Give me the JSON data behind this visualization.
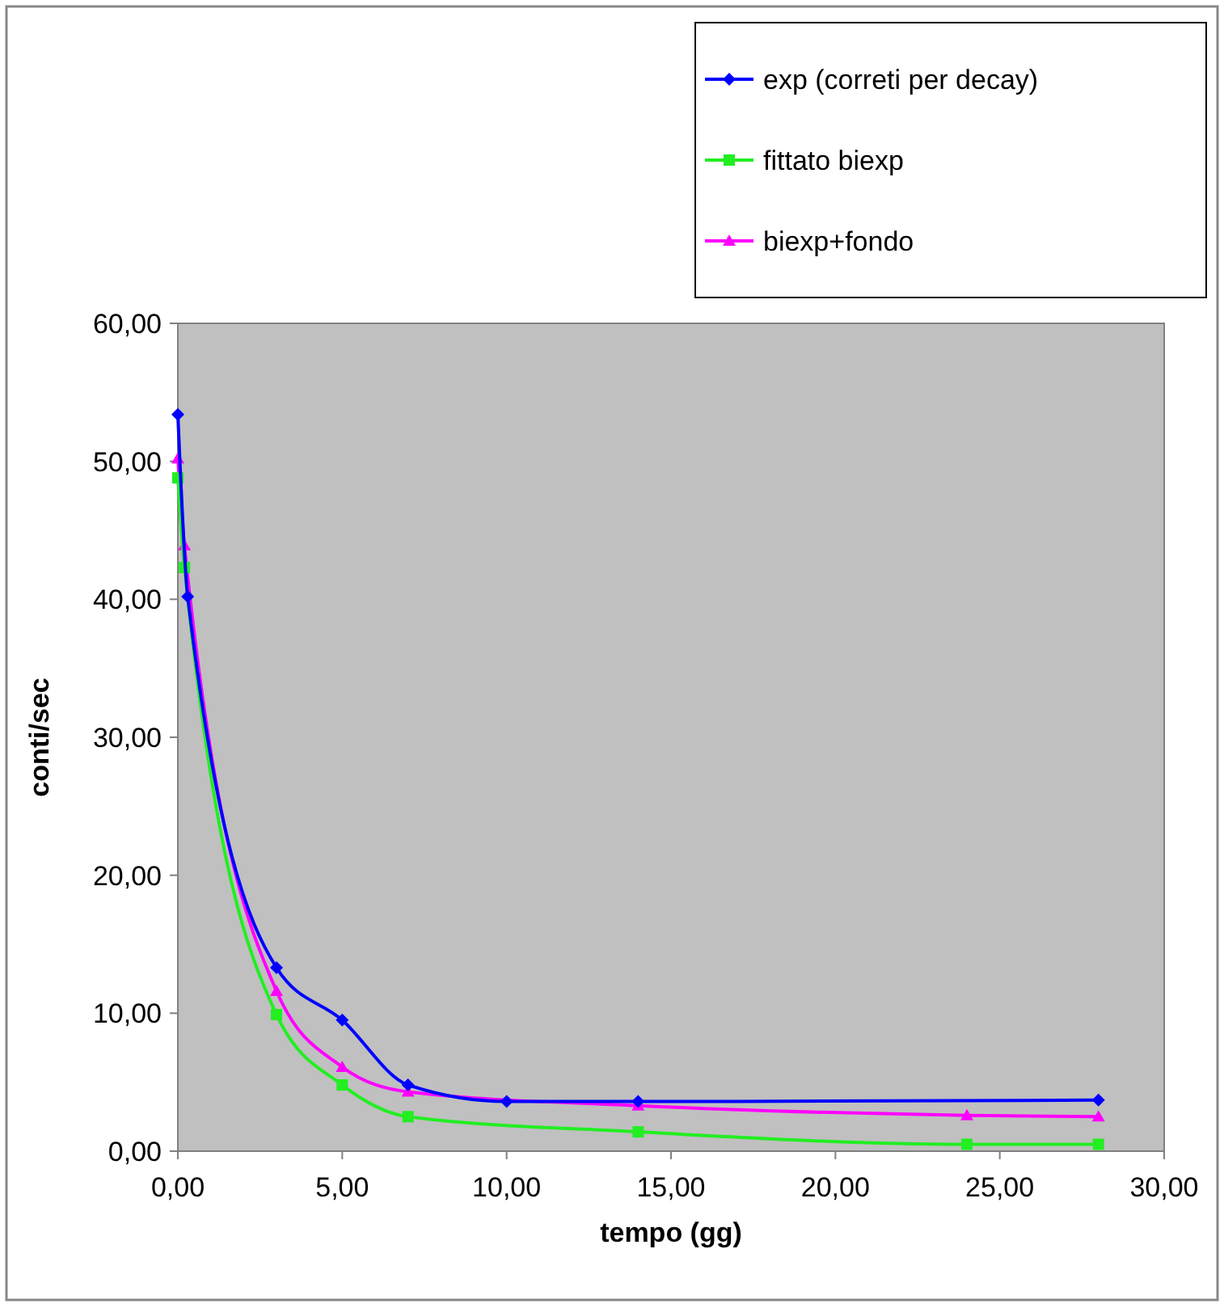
{
  "chart_data": {
    "type": "line",
    "xlabel": "tempo (gg)",
    "ylabel": "conti/sec",
    "xlim": [
      0,
      30
    ],
    "ylim": [
      0,
      60
    ],
    "xticks": [
      {
        "value": 0,
        "label": "0,00"
      },
      {
        "value": 5,
        "label": "5,00"
      },
      {
        "value": 10,
        "label": "10,00"
      },
      {
        "value": 15,
        "label": "15,00"
      },
      {
        "value": 20,
        "label": "20,00"
      },
      {
        "value": 25,
        "label": "25,00"
      },
      {
        "value": 30,
        "label": "30,00"
      }
    ],
    "yticks": [
      {
        "value": 0,
        "label": "0,00"
      },
      {
        "value": 10,
        "label": "10,00"
      },
      {
        "value": 20,
        "label": "20,00"
      },
      {
        "value": 30,
        "label": "30,00"
      },
      {
        "value": 40,
        "label": "40,00"
      },
      {
        "value": 50,
        "label": "50,00"
      },
      {
        "value": 60,
        "label": "60,00"
      }
    ],
    "grid": false,
    "legend": "top right",
    "series": [
      {
        "name": "exp (correti per decay)",
        "color": "#0000ff",
        "marker": "diamond",
        "x": [
          0,
          0.3,
          3,
          5,
          7,
          10,
          14,
          28
        ],
        "values": [
          53.4,
          40.2,
          13.3,
          9.5,
          4.8,
          3.6,
          3.6,
          3.7
        ]
      },
      {
        "name": "fittato biexp",
        "color": "#22ee22",
        "marker": "square",
        "x": [
          0,
          0.2,
          3,
          5,
          7,
          14,
          24,
          28
        ],
        "values": [
          48.8,
          42.3,
          9.9,
          4.8,
          2.5,
          1.4,
          0.5,
          0.5
        ]
      },
      {
        "name": "biexp+fondo",
        "color": "#ff00ff",
        "marker": "triangle",
        "x": [
          0,
          0.2,
          3,
          5,
          7,
          14,
          24,
          28
        ],
        "values": [
          50.2,
          43.9,
          11.6,
          6.1,
          4.3,
          3.3,
          2.6,
          2.5
        ]
      }
    ]
  }
}
